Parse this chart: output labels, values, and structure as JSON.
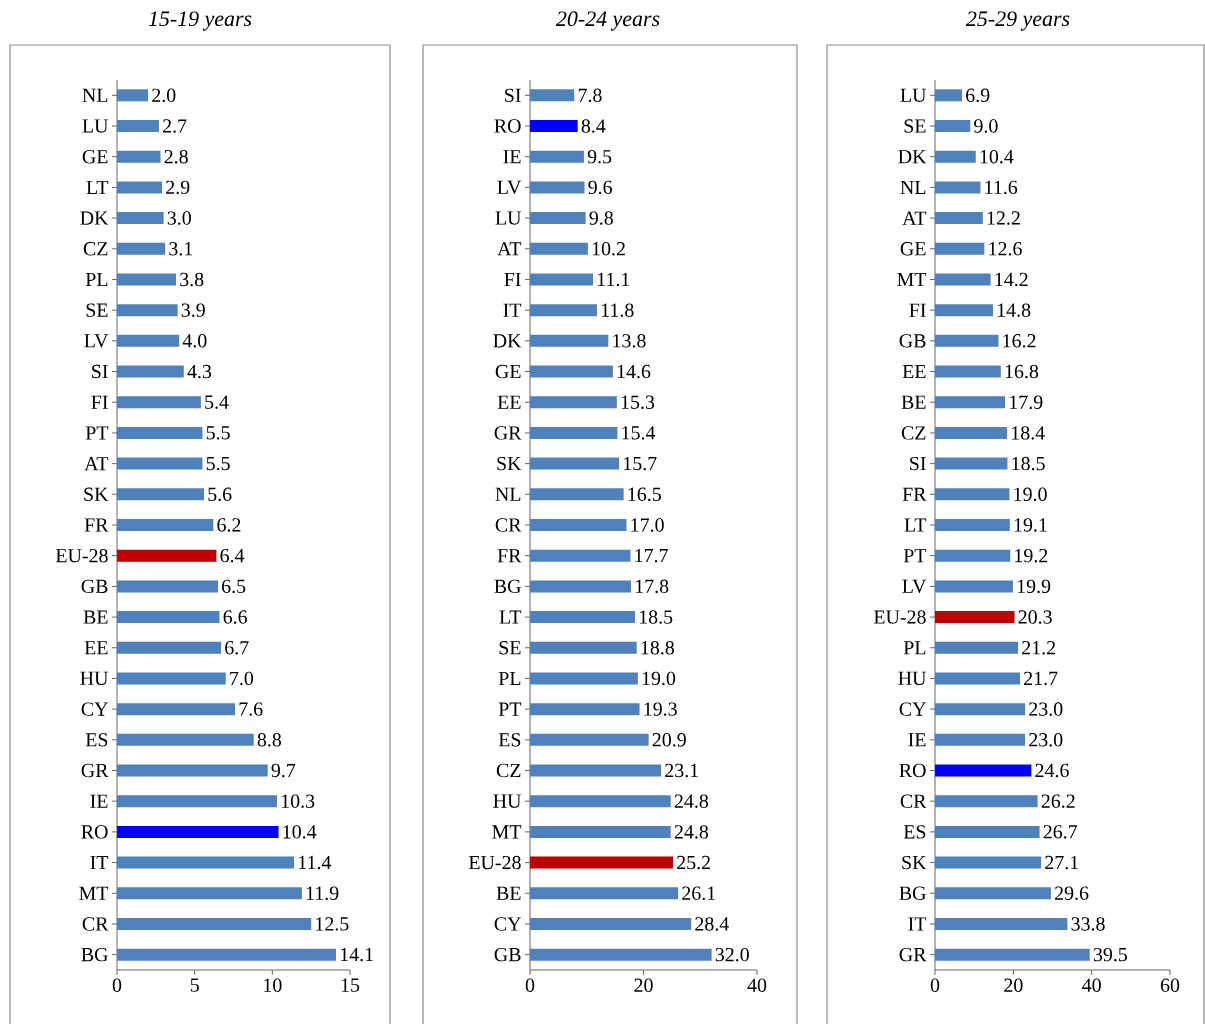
{
  "chart_data": [
    {
      "type": "bar",
      "orientation": "horizontal",
      "title": "15-19 years",
      "categories": [
        "NL",
        "LU",
        "GE",
        "LT",
        "DK",
        "CZ",
        "PL",
        "SE",
        "LV",
        "SI",
        "FI",
        "PT",
        "AT",
        "SK",
        "FR",
        "EU-28",
        "GB",
        "BE",
        "EE",
        "HU",
        "CY",
        "ES",
        "GR",
        "IE",
        "RO",
        "IT",
        "MT",
        "CR",
        "BG"
      ],
      "values": [
        2.0,
        2.7,
        2.8,
        2.9,
        3.0,
        3.1,
        3.8,
        3.9,
        4.0,
        4.3,
        5.4,
        5.5,
        5.5,
        5.6,
        6.2,
        6.4,
        6.5,
        6.6,
        6.7,
        7.0,
        7.6,
        8.8,
        9.7,
        10.3,
        10.4,
        11.4,
        11.9,
        12.5,
        14.1
      ],
      "value_labels": [
        "2.0",
        "2.7",
        "2.8",
        "2.9",
        "3.0",
        "3.1",
        "3.8",
        "3.9",
        "4.0",
        "4.3",
        "5.4",
        "5.5",
        "5.5",
        "5.6",
        "6.2",
        "6.4",
        "6.5",
        "6.6",
        "6.7",
        "7.0",
        "7.6",
        "8.8",
        "9.7",
        "10.3",
        "10.4",
        "11.4",
        "11.9",
        "12.5",
        "14.1"
      ],
      "colors": [
        "#4f81bd",
        "#4f81bd",
        "#4f81bd",
        "#4f81bd",
        "#4f81bd",
        "#4f81bd",
        "#4f81bd",
        "#4f81bd",
        "#4f81bd",
        "#4f81bd",
        "#4f81bd",
        "#4f81bd",
        "#4f81bd",
        "#4f81bd",
        "#4f81bd",
        "#c00000",
        "#4f81bd",
        "#4f81bd",
        "#4f81bd",
        "#4f81bd",
        "#4f81bd",
        "#4f81bd",
        "#4f81bd",
        "#4f81bd",
        "#0000ff",
        "#4f81bd",
        "#4f81bd",
        "#4f81bd",
        "#4f81bd"
      ],
      "xlim": [
        0,
        15
      ],
      "xticks": [
        0,
        5,
        10,
        15
      ]
    },
    {
      "type": "bar",
      "orientation": "horizontal",
      "title": "20-24 years",
      "categories": [
        "SI",
        "RO",
        "IE",
        "LV",
        "LU",
        "AT",
        "FI",
        "IT",
        "DK",
        "GE",
        "EE",
        "GR",
        "SK",
        "NL",
        "CR",
        "FR",
        "BG",
        "LT",
        "SE",
        "PL",
        "PT",
        "ES",
        "CZ",
        "HU",
        "MT",
        "EU-28",
        "BE",
        "CY",
        "GB"
      ],
      "values": [
        7.8,
        8.4,
        9.5,
        9.6,
        9.8,
        10.2,
        11.1,
        11.8,
        13.8,
        14.6,
        15.3,
        15.4,
        15.7,
        16.5,
        17.0,
        17.7,
        17.8,
        18.5,
        18.8,
        19.0,
        19.3,
        20.9,
        23.1,
        24.8,
        24.8,
        25.2,
        26.1,
        28.4,
        32.0
      ],
      "value_labels": [
        "7.8",
        "8.4",
        "9.5",
        "9.6",
        "9.8",
        "10.2",
        "11.1",
        "11.8",
        "13.8",
        "14.6",
        "15.3",
        "15.4",
        "15.7",
        "16.5",
        "17.0",
        "17.7",
        "17.8",
        "18.5",
        "18.8",
        "19.0",
        "19.3",
        "20.9",
        "23.1",
        "24.8",
        "24.8",
        "25.2",
        "26.1",
        "28.4",
        "32.0"
      ],
      "colors": [
        "#4f81bd",
        "#0000ff",
        "#4f81bd",
        "#4f81bd",
        "#4f81bd",
        "#4f81bd",
        "#4f81bd",
        "#4f81bd",
        "#4f81bd",
        "#4f81bd",
        "#4f81bd",
        "#4f81bd",
        "#4f81bd",
        "#4f81bd",
        "#4f81bd",
        "#4f81bd",
        "#4f81bd",
        "#4f81bd",
        "#4f81bd",
        "#4f81bd",
        "#4f81bd",
        "#4f81bd",
        "#4f81bd",
        "#4f81bd",
        "#4f81bd",
        "#c00000",
        "#4f81bd",
        "#4f81bd",
        "#4f81bd"
      ],
      "xlim": [
        0,
        40
      ],
      "xticks": [
        0,
        20,
        40
      ]
    },
    {
      "type": "bar",
      "orientation": "horizontal",
      "title": "25-29 years",
      "categories": [
        "LU",
        "SE",
        "DK",
        "NL",
        "AT",
        "GE",
        "MT",
        "FI",
        "GB",
        "EE",
        "BE",
        "CZ",
        "SI",
        "FR",
        "LT",
        "PT",
        "LV",
        "EU-28",
        "PL",
        "HU",
        "CY",
        "IE",
        "RO",
        "CR",
        "ES",
        "SK",
        "BG",
        "IT",
        "GR"
      ],
      "values": [
        6.9,
        9.0,
        10.4,
        11.6,
        12.2,
        12.6,
        14.2,
        14.8,
        16.2,
        16.8,
        17.9,
        18.4,
        18.5,
        19.0,
        19.1,
        19.2,
        19.9,
        20.3,
        21.2,
        21.7,
        23.0,
        23.0,
        24.6,
        26.2,
        26.7,
        27.1,
        29.6,
        33.8,
        39.5
      ],
      "value_labels": [
        "6.9",
        "9.0",
        "10.4",
        "11.6",
        "12.2",
        "12.6",
        "14.2",
        "14.8",
        "16.2",
        "16.8",
        "17.9",
        "18.4",
        "18.5",
        "19.0",
        "19.1",
        "19.2",
        "19.9",
        "20.3",
        "21.2",
        "21.7",
        "23.0",
        "23.0",
        "24.6",
        "26.2",
        "26.7",
        "27.1",
        "29.6",
        "33.8",
        "39.5"
      ],
      "colors": [
        "#4f81bd",
        "#4f81bd",
        "#4f81bd",
        "#4f81bd",
        "#4f81bd",
        "#4f81bd",
        "#4f81bd",
        "#4f81bd",
        "#4f81bd",
        "#4f81bd",
        "#4f81bd",
        "#4f81bd",
        "#4f81bd",
        "#4f81bd",
        "#4f81bd",
        "#4f81bd",
        "#4f81bd",
        "#c00000",
        "#4f81bd",
        "#4f81bd",
        "#4f81bd",
        "#4f81bd",
        "#0000ff",
        "#4f81bd",
        "#4f81bd",
        "#4f81bd",
        "#4f81bd",
        "#4f81bd",
        "#4f81bd"
      ],
      "xlim": [
        0,
        60
      ],
      "xticks": [
        0,
        20,
        40,
        60
      ]
    }
  ]
}
